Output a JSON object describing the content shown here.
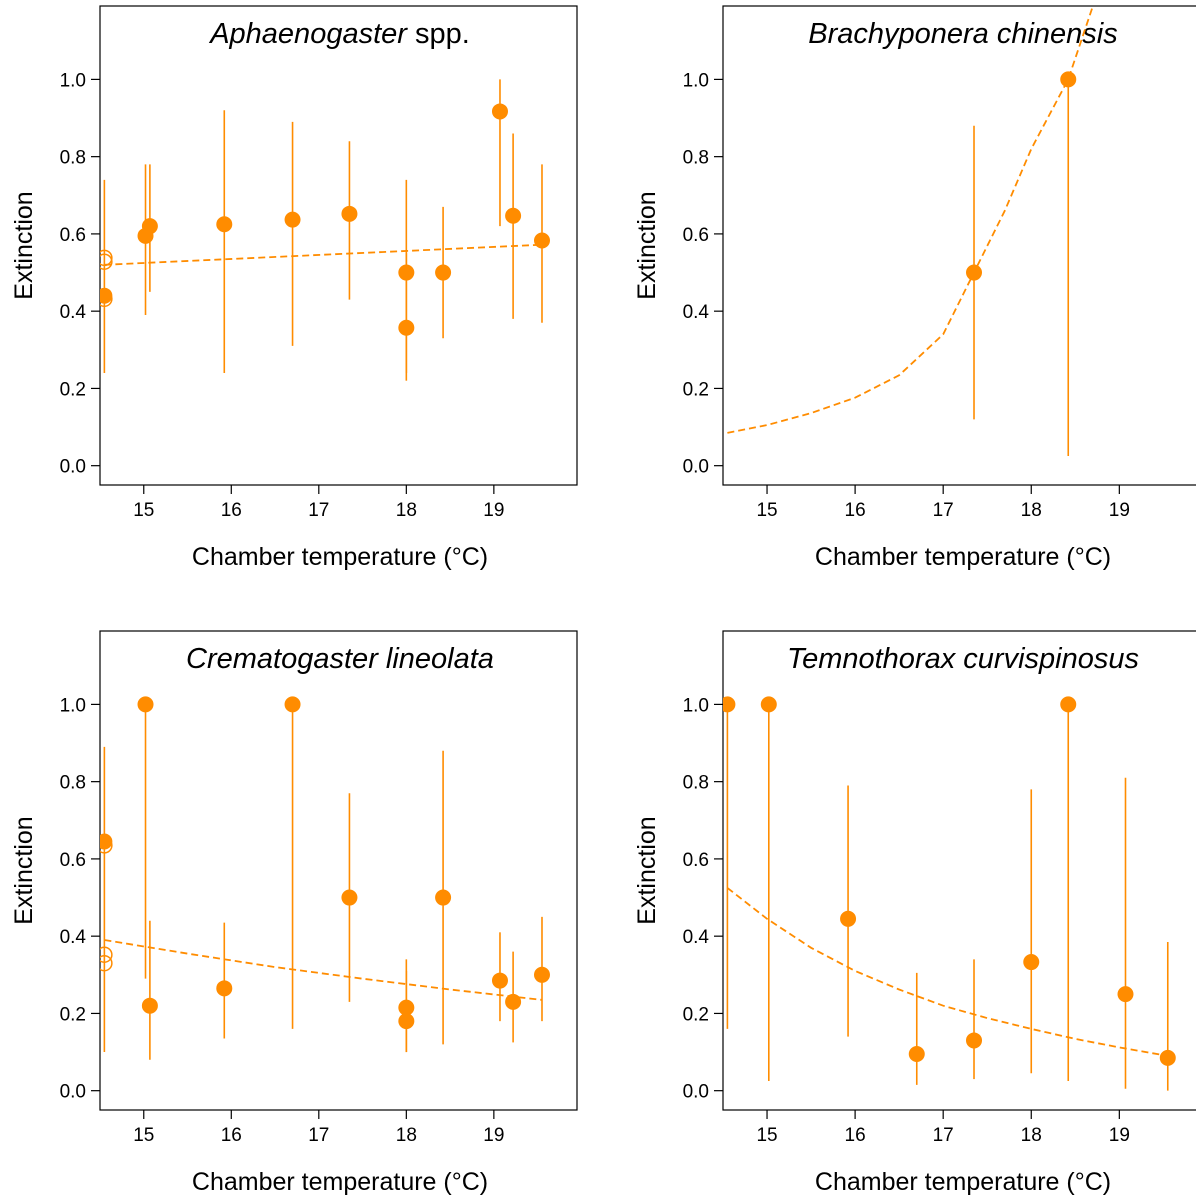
{
  "figure": {
    "accent_color": "#ff8c00",
    "panels_layout": "2x2 grid"
  },
  "chart_data": [
    {
      "type": "scatter",
      "title_parts": [
        {
          "text": "Aphaenogaster",
          "italic": true
        },
        {
          "text": " spp.",
          "italic": false
        }
      ],
      "xlabel": "Chamber temperature (°C)",
      "ylabel": "Extinction",
      "xlim": [
        14.5,
        19.95
      ],
      "ylim": [
        -0.05,
        1.19
      ],
      "x_ticks": [
        15,
        16,
        17,
        18,
        19
      ],
      "y_ticks": [
        0.0,
        0.2,
        0.4,
        0.6,
        0.8,
        1.0
      ],
      "y_tick_labels": [
        "0.0",
        "0.2",
        "0.4",
        "0.6",
        "0.8",
        "1.0"
      ],
      "grid": false,
      "points": [
        {
          "x": 14.55,
          "y": 0.44,
          "lo": 0.24,
          "hi": 0.74
        },
        {
          "x": 15.02,
          "y": 0.595,
          "lo": 0.39,
          "hi": 0.78
        },
        {
          "x": 15.07,
          "y": 0.62,
          "lo": 0.45,
          "hi": 0.78
        },
        {
          "x": 15.92,
          "y": 0.625,
          "lo": 0.24,
          "hi": 0.92
        },
        {
          "x": 16.7,
          "y": 0.637,
          "lo": 0.31,
          "hi": 0.89
        },
        {
          "x": 17.35,
          "y": 0.652,
          "lo": 0.43,
          "hi": 0.84
        },
        {
          "x": 18.0,
          "y": 0.5,
          "lo": 0.24,
          "hi": 0.74
        },
        {
          "x": 18.0,
          "y": 0.357,
          "lo": 0.22,
          "hi": 0.55
        },
        {
          "x": 18.42,
          "y": 0.5,
          "lo": 0.33,
          "hi": 0.67
        },
        {
          "x": 19.07,
          "y": 0.917,
          "lo": 0.62,
          "hi": 1.0
        },
        {
          "x": 19.22,
          "y": 0.647,
          "lo": 0.38,
          "hi": 0.86
        },
        {
          "x": 19.55,
          "y": 0.583,
          "lo": 0.37,
          "hi": 0.78
        }
      ],
      "open_points": [
        {
          "x": 14.55,
          "y": 0.538
        },
        {
          "x": 14.55,
          "y": 0.528
        },
        {
          "x": 14.55,
          "y": 0.432
        }
      ],
      "fit_line": {
        "x": [
          14.55,
          19.55
        ],
        "y": [
          0.52,
          0.572
        ]
      }
    },
    {
      "type": "scatter",
      "title_parts": [
        {
          "text": "Brachyponera chinensis",
          "italic": true
        }
      ],
      "xlabel": "Chamber temperature (°C)",
      "ylabel": "Extinction",
      "xlim": [
        14.5,
        19.95
      ],
      "ylim": [
        -0.05,
        1.19
      ],
      "x_ticks": [
        15,
        16,
        17,
        18,
        19
      ],
      "y_ticks": [
        0.0,
        0.2,
        0.4,
        0.6,
        0.8,
        1.0
      ],
      "y_tick_labels": [
        "0.0",
        "0.2",
        "0.4",
        "0.6",
        "0.8",
        "1.0"
      ],
      "grid": false,
      "points": [
        {
          "x": 17.35,
          "y": 0.5,
          "lo": 0.12,
          "hi": 0.88
        },
        {
          "x": 18.42,
          "y": 1.0,
          "lo": 0.025,
          "hi": 1.0
        }
      ],
      "open_points": [],
      "fit_line": {
        "x": [
          14.55,
          15.0,
          15.5,
          16.0,
          16.5,
          17.0,
          17.35,
          17.7,
          18.0,
          18.42,
          18.7
        ],
        "y": [
          0.085,
          0.105,
          0.136,
          0.176,
          0.234,
          0.34,
          0.5,
          0.66,
          0.82,
          1.0,
          1.19
        ]
      }
    },
    {
      "type": "scatter",
      "title_parts": [
        {
          "text": "Crematogaster lineolata",
          "italic": true
        }
      ],
      "xlabel": "Chamber temperature (°C)",
      "ylabel": "Extinction",
      "xlim": [
        14.5,
        19.95
      ],
      "ylim": [
        -0.05,
        1.19
      ],
      "x_ticks": [
        15,
        16,
        17,
        18,
        19
      ],
      "y_ticks": [
        0.0,
        0.2,
        0.4,
        0.6,
        0.8,
        1.0
      ],
      "y_tick_labels": [
        "0.0",
        "0.2",
        "0.4",
        "0.6",
        "0.8",
        "1.0"
      ],
      "grid": false,
      "points": [
        {
          "x": 14.55,
          "y": 0.645,
          "lo": 0.1,
          "hi": 0.89
        },
        {
          "x": 15.02,
          "y": 1.0,
          "lo": 0.29,
          "hi": 1.0
        },
        {
          "x": 15.07,
          "y": 0.22,
          "lo": 0.08,
          "hi": 0.44
        },
        {
          "x": 15.92,
          "y": 0.265,
          "lo": 0.135,
          "hi": 0.435
        },
        {
          "x": 16.7,
          "y": 1.0,
          "lo": 0.16,
          "hi": 1.0
        },
        {
          "x": 17.35,
          "y": 0.5,
          "lo": 0.23,
          "hi": 0.77
        },
        {
          "x": 18.0,
          "y": 0.215,
          "lo": 0.1,
          "hi": 0.34
        },
        {
          "x": 18.0,
          "y": 0.18,
          "lo": 0.1,
          "hi": 0.31
        },
        {
          "x": 18.42,
          "y": 0.5,
          "lo": 0.12,
          "hi": 0.88
        },
        {
          "x": 19.07,
          "y": 0.285,
          "lo": 0.18,
          "hi": 0.41
        },
        {
          "x": 19.22,
          "y": 0.23,
          "lo": 0.125,
          "hi": 0.36
        },
        {
          "x": 19.55,
          "y": 0.3,
          "lo": 0.18,
          "hi": 0.45
        }
      ],
      "open_points": [
        {
          "x": 14.55,
          "y": 0.635
        },
        {
          "x": 14.55,
          "y": 0.352
        },
        {
          "x": 14.55,
          "y": 0.33
        }
      ],
      "fit_line": {
        "x": [
          14.55,
          15.5,
          16.5,
          17.5,
          18.5,
          19.55
        ],
        "y": [
          0.39,
          0.355,
          0.32,
          0.29,
          0.262,
          0.235
        ]
      }
    },
    {
      "type": "scatter",
      "title_parts": [
        {
          "text": "Temnothorax curvispinosus",
          "italic": true
        }
      ],
      "xlabel": "Chamber temperature (°C)",
      "ylabel": "Extinction",
      "xlim": [
        14.5,
        19.95
      ],
      "ylim": [
        -0.05,
        1.19
      ],
      "x_ticks": [
        15,
        16,
        17,
        18,
        19
      ],
      "y_ticks": [
        0.0,
        0.2,
        0.4,
        0.6,
        0.8,
        1.0
      ],
      "y_tick_labels": [
        "0.0",
        "0.2",
        "0.4",
        "0.6",
        "0.8",
        "1.0"
      ],
      "grid": false,
      "points": [
        {
          "x": 14.55,
          "y": 1.0,
          "lo": 0.16,
          "hi": 1.0
        },
        {
          "x": 15.02,
          "y": 1.0,
          "lo": 0.025,
          "hi": 1.0
        },
        {
          "x": 15.92,
          "y": 0.445,
          "lo": 0.14,
          "hi": 0.79
        },
        {
          "x": 16.7,
          "y": 0.095,
          "lo": 0.015,
          "hi": 0.305
        },
        {
          "x": 17.35,
          "y": 0.13,
          "lo": 0.03,
          "hi": 0.34
        },
        {
          "x": 18.0,
          "y": 0.333,
          "lo": 0.045,
          "hi": 0.78
        },
        {
          "x": 18.42,
          "y": 1.0,
          "lo": 0.025,
          "hi": 1.0
        },
        {
          "x": 19.07,
          "y": 0.25,
          "lo": 0.005,
          "hi": 0.81
        },
        {
          "x": 19.55,
          "y": 0.085,
          "lo": 0.0,
          "hi": 0.385
        }
      ],
      "open_points": [],
      "fit_line": {
        "x": [
          14.55,
          15.0,
          15.5,
          16.0,
          16.5,
          17.0,
          17.5,
          18.0,
          18.5,
          19.0,
          19.55
        ],
        "y": [
          0.525,
          0.445,
          0.37,
          0.31,
          0.262,
          0.22,
          0.188,
          0.16,
          0.134,
          0.112,
          0.09
        ]
      }
    }
  ]
}
